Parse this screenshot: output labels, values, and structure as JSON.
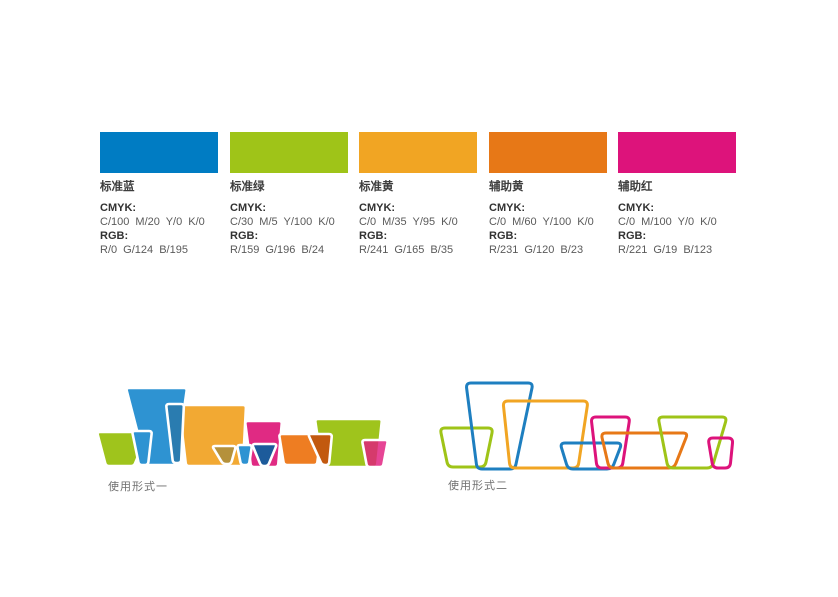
{
  "document": {
    "background": "#FFFFFF",
    "type_note": "brand color specification sheet"
  },
  "palette": {
    "cmyk_heading": "CMYK:",
    "rgb_heading": "RGB:",
    "columns": [
      {
        "name": "标准蓝",
        "hex": "#007CC3",
        "cmyk": "C/100 M/20 Y/0 K/0",
        "rgb": "R/0 G/124 B/195"
      },
      {
        "name": "标准绿",
        "hex": "#9FC418",
        "cmyk": "C/30 M/5 Y/100 K/0",
        "rgb": "R/159 G/196 B/24"
      },
      {
        "name": "标准黄",
        "hex": "#F1A523",
        "cmyk": "C/0 M/35 Y/95 K/0",
        "rgb": "R/241 G/165 B/35"
      },
      {
        "name": "辅助黄",
        "hex": "#E77817",
        "cmyk": "C/0 M/60 Y/100 K/0",
        "rgb": "R/231 G/120 B/23"
      },
      {
        "name": "辅助红",
        "hex": "#DD137B",
        "cmyk": "C/0 M/100 Y/0 K/0",
        "rgb": "R/221 G/19 B/123"
      }
    ]
  },
  "usage": {
    "form1_label": "使用形式一",
    "form2_label": "使用形式二",
    "form1_shapes": [
      {
        "t": [
          97,
          148
        ],
        "b": [
          106,
          134
        ],
        "y": [
          432,
          466
        ],
        "c": "#9FC41C",
        "f": "fill"
      },
      {
        "t": [
          126,
          187
        ],
        "b": [
          146,
          176
        ],
        "y": [
          388,
          465
        ],
        "c": "#2E93D2",
        "f": "fill"
      },
      {
        "t": [
          132,
          152
        ],
        "b": [
          139,
          148
        ],
        "y": [
          431,
          465
        ],
        "c": "#2E93D2",
        "f": "fill"
      },
      {
        "t": [
          179,
          246
        ],
        "b": [
          186,
          243
        ],
        "y": [
          405,
          466
        ],
        "c": "#F2A933",
        "f": "fill"
      },
      {
        "t": [
          166,
          184
        ],
        "b": [
          173,
          181
        ],
        "y": [
          404,
          463
        ],
        "c": "#2A7CB0",
        "f": "fill"
      },
      {
        "t": [
          212,
          236
        ],
        "b": [
          223,
          231
        ],
        "y": [
          446,
          464
        ],
        "c": "#B5913B",
        "f": "fill"
      },
      {
        "t": [
          245,
          282
        ],
        "b": [
          251,
          278
        ],
        "y": [
          421,
          467
        ],
        "c": "#E02A83",
        "f": "fill"
      },
      {
        "t": [
          237,
          252
        ],
        "b": [
          241,
          249
        ],
        "y": [
          445,
          465
        ],
        "c": "#2E93D2",
        "f": "fill"
      },
      {
        "t": [
          252,
          277
        ],
        "b": [
          261,
          268
        ],
        "y": [
          444,
          466
        ],
        "c": "#1D5B9B",
        "f": "fill"
      },
      {
        "t": [
          315,
          382
        ],
        "b": [
          322,
          377
        ],
        "y": [
          419,
          467
        ],
        "c": "#9FC41C",
        "f": "fill"
      },
      {
        "t": [
          279,
          321
        ],
        "b": [
          284,
          317
        ],
        "y": [
          434,
          465
        ],
        "c": "#EE7D22",
        "f": "fill"
      },
      {
        "t": [
          308,
          332
        ],
        "b": [
          322,
          329
        ],
        "y": [
          434,
          465
        ],
        "c": "#C2590F",
        "f": "fill"
      },
      {
        "t": [
          362,
          388
        ],
        "b": [
          367,
          383
        ],
        "y": [
          440,
          467
        ],
        "c": "#E01C7E",
        "f": "fill",
        "o": 0.82
      }
    ],
    "form2_shapes": [
      {
        "t": [
          440,
          493
        ],
        "b": [
          448,
          485
        ],
        "y": [
          428,
          467
        ],
        "c": "#9FC418",
        "f": "line"
      },
      {
        "t": [
          466,
          533
        ],
        "b": [
          477,
          515
        ],
        "y": [
          383,
          469
        ],
        "c": "#1E7FC0",
        "f": "line"
      },
      {
        "t": [
          503,
          588
        ],
        "b": [
          510,
          578
        ],
        "y": [
          401,
          468
        ],
        "c": "#F1A523",
        "f": "line"
      },
      {
        "t": [
          560,
          622
        ],
        "b": [
          568,
          612
        ],
        "y": [
          443,
          469
        ],
        "c": "#1E7FC0",
        "f": "line"
      },
      {
        "t": [
          591,
          630
        ],
        "b": [
          597,
          622
        ],
        "y": [
          417,
          468
        ],
        "c": "#DD137B",
        "f": "line"
      },
      {
        "t": [
          601,
          688
        ],
        "b": [
          609,
          674
        ],
        "y": [
          433,
          468
        ],
        "c": "#E77817",
        "f": "line"
      },
      {
        "t": [
          658,
          727
        ],
        "b": [
          668,
          712
        ],
        "y": [
          417,
          468
        ],
        "c": "#9FC418",
        "f": "line"
      },
      {
        "t": [
          708,
          733
        ],
        "b": [
          713,
          730
        ],
        "y": [
          438,
          468
        ],
        "c": "#DD137B",
        "f": "line"
      }
    ]
  }
}
